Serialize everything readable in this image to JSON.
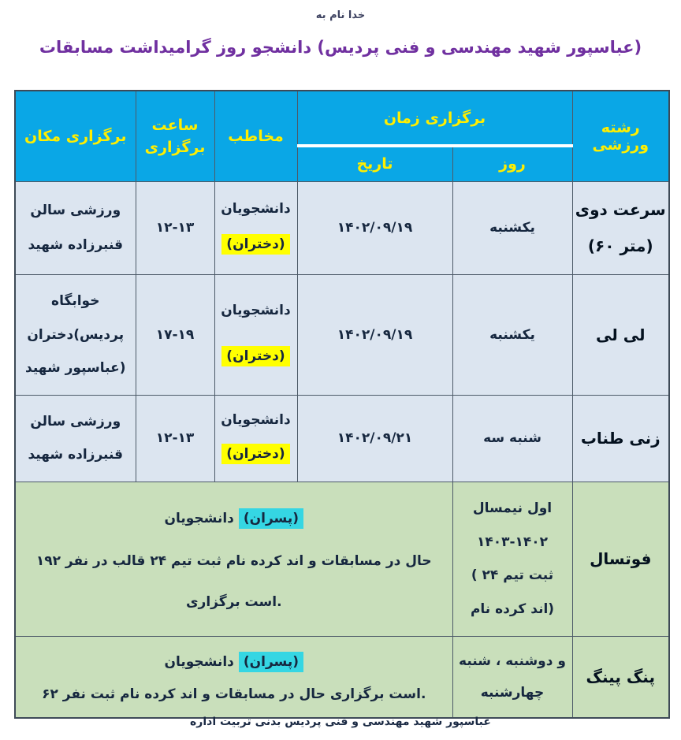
{
  "page": {
    "bismillah": "به نام خدا",
    "title": "مسابقات گرامیداشت روز دانشجو (پردیس فنی و مهندسی شهید عباسپور)",
    "footer": "اداره تربیت بدنی پردیس فنی و مهندسی شهید عباسپور"
  },
  "colors": {
    "header_bg": "#0aa7e6",
    "header_text": "#ffee00",
    "row_blue_bg": "#dce5f0",
    "row_green_bg": "#c9dfbb",
    "highlight_yellow": "#ffff00",
    "highlight_cyan": "#35d6e3",
    "title_purple": "#7030a0",
    "body_text": "#16273f"
  },
  "table": {
    "header": {
      "location": "مکان برگزاری",
      "hour_l1": "ساعت",
      "hour_l2": "برگزاری",
      "audience": "مخاطب",
      "time_group": "زمان برگزاری",
      "date": "تاریخ",
      "day": "روز",
      "sport": "رشته ورزشی"
    },
    "rows": [
      {
        "sport_l1": "دوی سرعت",
        "sport_l2": "(۶۰ متر)",
        "day": "یکشنبه",
        "date": "۱۴۰۲/۰۹/۱۹",
        "aud_l1": "دانشجویان",
        "aud_hl": "(دختران)",
        "hour": "۱۲-۱۳",
        "loc_l1": "سالن ورزشی",
        "loc_l2": "شهید قنبرزاده"
      },
      {
        "sport_l1": "لی لی",
        "day": "یکشنبه",
        "date": "۱۴۰۲/۰۹/۱۹",
        "aud_l1": "دانشجویان",
        "aud_hl": "(دختران)",
        "hour": "۱۷-۱۹",
        "loc_l1": "خوابگاه",
        "loc_l2": "دختران(پردیس",
        "loc_l3": "شهید عباسپور)"
      },
      {
        "sport_l1": "طناب زنی",
        "day": "سه شنبه",
        "date": "۱۴۰۲/۰۹/۲۱",
        "aud_l1": "دانشجویان",
        "aud_hl": "(دختران)",
        "hour": "۱۲-۱۳",
        "loc_l1": "سالن ورزشی",
        "loc_l2": "شهید قنبرزاده"
      },
      {
        "sport_l1": "فوتسال",
        "sem_l1": "نیمسال اول",
        "sem_l2": "۱۴۰۳-۱۴۰۲",
        "sem_l3": "( ۲۴ تیم ثبت",
        "sem_l4": "نام کرده اند)",
        "det_intro": "دانشجویان",
        "det_hl": "(پسران)",
        "det_l1": "۱۹۲ نفر در قالب ۲۴ تیم ثبت نام کرده اند و مسابقات در حال",
        "det_l2": "برگزاری است."
      },
      {
        "sport_l1": "پینگ پنگ",
        "days_l1": "شنبه ، دوشنبه و",
        "days_l2": "چهارشنبه",
        "det_intro": "دانشجویان",
        "det_hl": "(پسران)",
        "det_l1": "۶۲ نفر ثبت نام کرده اند و مسابقات در حال برگزاری است."
      }
    ]
  }
}
